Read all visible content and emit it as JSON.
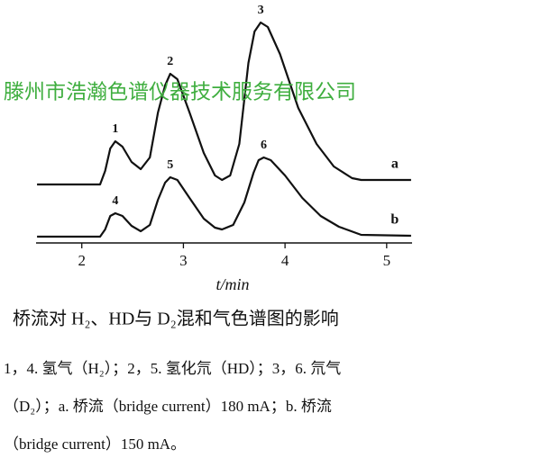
{
  "chart_data": {
    "type": "line",
    "xlabel": "t/min",
    "xlim": [
      1.55,
      5.25
    ],
    "xticks": [
      2,
      3,
      4,
      5
    ],
    "ylim": [
      0,
      100
    ],
    "color": "#111111",
    "series": [
      {
        "name": "a",
        "color": "#111111",
        "x": [
          1.56,
          2.18,
          2.23,
          2.28,
          2.33,
          2.4,
          2.49,
          2.58,
          2.67,
          2.75,
          2.82,
          2.87,
          2.94,
          3.06,
          3.2,
          3.31,
          3.38,
          3.46,
          3.55,
          3.64,
          3.7,
          3.76,
          3.83,
          3.95,
          4.13,
          4.31,
          4.48,
          4.66,
          4.75,
          5.24
        ],
        "values": [
          26,
          26,
          32,
          42,
          45.2,
          42.8,
          36,
          32.8,
          38,
          58,
          70,
          75.2,
          72.8,
          58,
          40,
          30,
          28,
          30,
          44,
          80,
          94,
          98,
          96,
          84,
          60,
          44,
          34,
          28.8,
          28,
          28
        ],
        "peaks": [
          {
            "label": "1",
            "x": 2.33
          },
          {
            "label": "2",
            "x": 2.87
          },
          {
            "label": "3",
            "x": 3.76
          }
        ]
      },
      {
        "name": "b",
        "color": "#111111",
        "x": [
          1.56,
          2.18,
          2.23,
          2.28,
          2.33,
          2.4,
          2.49,
          2.58,
          2.67,
          2.75,
          2.82,
          2.87,
          2.94,
          3.06,
          3.2,
          3.31,
          3.38,
          3.49,
          3.6,
          3.69,
          3.74,
          3.79,
          3.86,
          4.0,
          4.17,
          4.35,
          4.53,
          4.75,
          5.24
        ],
        "values": [
          2.8,
          2.8,
          6,
          12,
          13.2,
          12,
          7.6,
          5.2,
          8,
          19.2,
          26.8,
          29.2,
          28,
          20,
          10.8,
          6.8,
          6,
          8,
          18,
          31.2,
          36.8,
          38,
          36.8,
          30,
          20,
          12,
          7.2,
          3.6,
          3.2
        ],
        "peaks": [
          {
            "label": "4",
            "x": 2.33
          },
          {
            "label": "5",
            "x": 2.87
          },
          {
            "label": "6",
            "x": 3.79
          }
        ]
      }
    ]
  },
  "watermark": "滕州市浩瀚色谱仪器技术服务有限公司",
  "caption": "桥流对 H₂、HD与 D₂混和气色谱图的影响",
  "notes": [
    "1，4. 氢气（H₂）；2，5. 氢化氘（HD）；3，6. 氘气",
    "（D₂）；a. 桥流（bridge current）180 mA；b. 桥流",
    "（bridge current）150 mA。"
  ]
}
